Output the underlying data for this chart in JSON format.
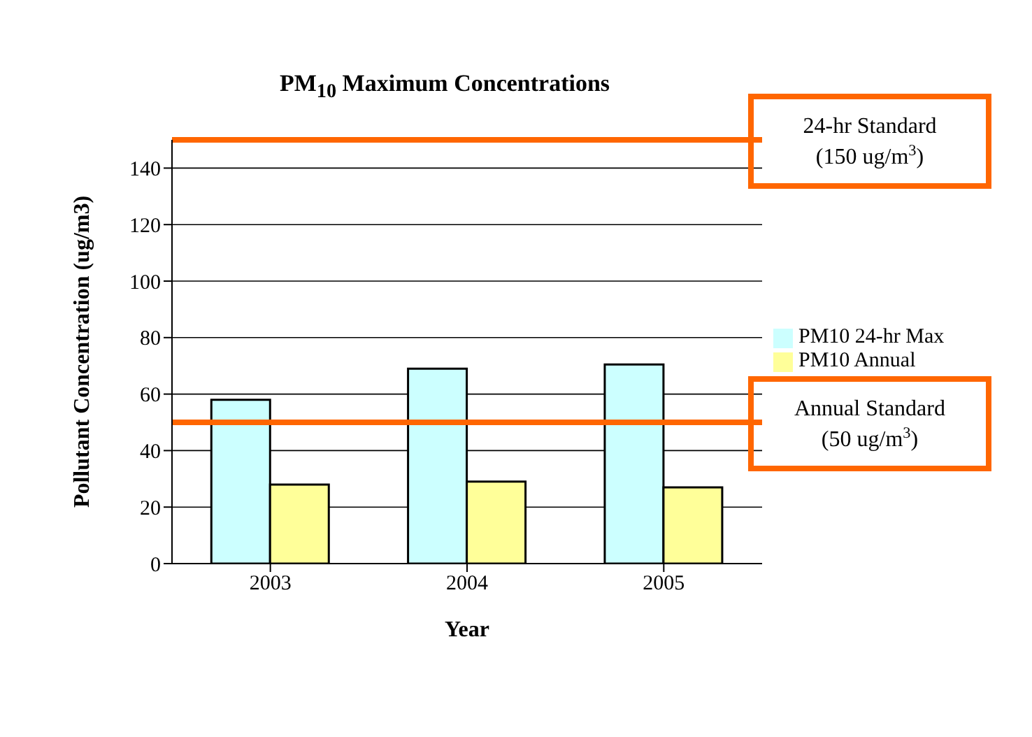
{
  "chart_data": {
    "type": "bar",
    "title": "PM$_{10}$ Maximum Concentrations",
    "xlabel": "Year",
    "ylabel": "Pollutant Concentration (ug/m3)",
    "categories": [
      "2003",
      "2004",
      "2005"
    ],
    "series": [
      {
        "name": "PM10 24-hr Max",
        "color": "#ccffff",
        "values": [
          58,
          69,
          70.5
        ]
      },
      {
        "name": "PM10 Annual",
        "color": "#ffff99",
        "values": [
          28,
          29,
          27
        ]
      }
    ],
    "ylim": [
      0,
      150
    ],
    "yticks": [
      0,
      20,
      40,
      60,
      80,
      100,
      120,
      140
    ],
    "grid": "y",
    "legend": "right",
    "ref_lines": [
      {
        "axis": "y",
        "value": 150,
        "label": "24-hr Standard (150 ug/m$^{3}$)",
        "color": "#ff6600"
      },
      {
        "axis": "y",
        "value": 50,
        "label": "Annual Standard (50 ug/m$^{3}$)",
        "color": "#ff6600"
      }
    ]
  }
}
